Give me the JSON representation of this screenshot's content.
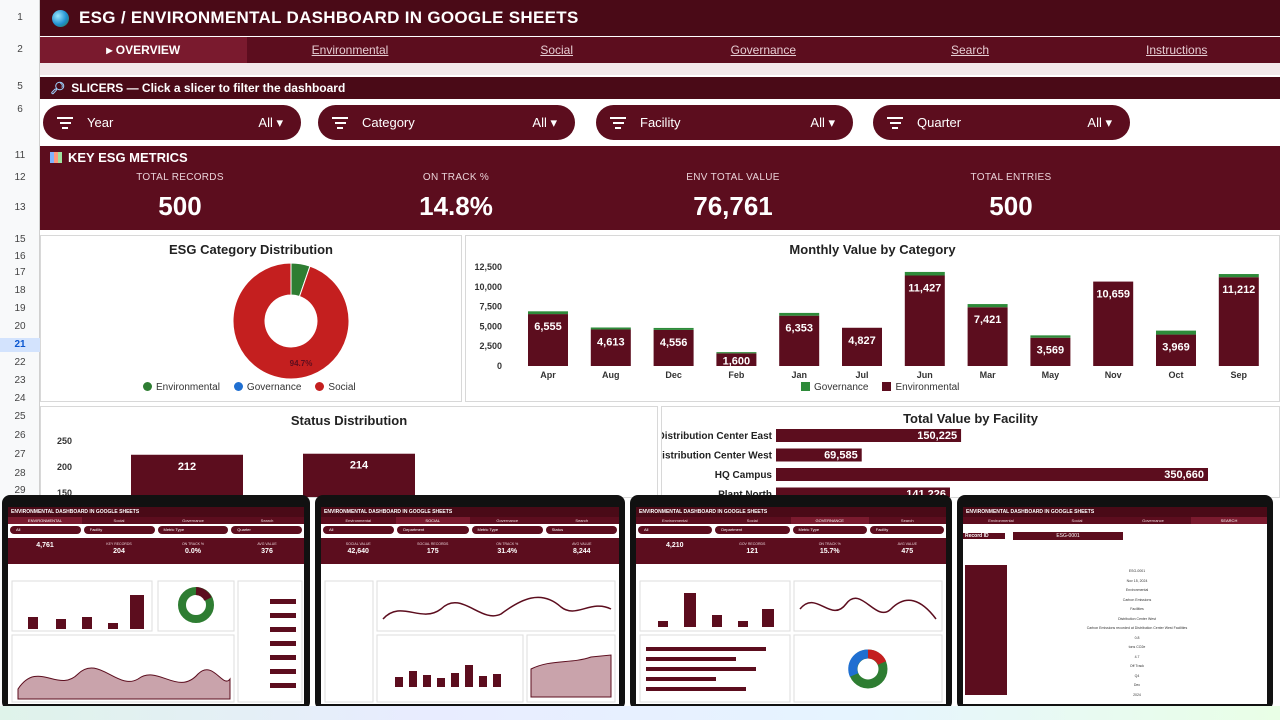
{
  "title": "ESG / ENVIRONMENTAL DASHBOARD IN GOOGLE SHEETS",
  "row_numbers": [
    "1",
    "2",
    "",
    "5",
    "6",
    "",
    "11",
    "12",
    "13",
    "15",
    "16",
    "17",
    "18",
    "19",
    "20",
    "21",
    "22",
    "23",
    "24",
    "25",
    "26",
    "27",
    "28",
    "29"
  ],
  "tabs": [
    {
      "label": "▸ OVERVIEW",
      "active": true
    },
    {
      "label": "Environmental"
    },
    {
      "label": "Social"
    },
    {
      "label": "Governance"
    },
    {
      "label": "Search"
    },
    {
      "label": "Instructions"
    }
  ],
  "slicers": {
    "header": "SLICERS — Click a slicer to filter the dashboard",
    "items": [
      {
        "label": "Year",
        "value": "All ▾"
      },
      {
        "label": "Category",
        "value": "All ▾"
      },
      {
        "label": "Facility",
        "value": "All ▾"
      },
      {
        "label": "Quarter",
        "value": "All ▾"
      }
    ]
  },
  "metrics": {
    "header": "KEY ESG METRICS",
    "items": [
      {
        "label": "TOTAL RECORDS",
        "value": "500"
      },
      {
        "label": "ON TRACK %",
        "value": "14.8%"
      },
      {
        "label": "ENV TOTAL VALUE",
        "value": "76,761"
      },
      {
        "label": "TOTAL ENTRIES",
        "value": "500"
      }
    ]
  },
  "colors": {
    "maroon": "#5c0d1e",
    "dark": "#4a0a17",
    "social": "#c41f1f",
    "environmental": "#2e7d32",
    "governance": "#1f6fd1",
    "gov_bar": "#2e8b3a"
  },
  "chart_data": [
    {
      "type": "pie",
      "title": "ESG Category Distribution",
      "categories": [
        "Environmental",
        "Governance",
        "Social"
      ],
      "values": [
        5.3,
        0,
        94.7
      ],
      "label": "94.7%",
      "legend": "bottom"
    },
    {
      "type": "bar",
      "title": "Monthly Value by Category",
      "categories": [
        "Apr",
        "Aug",
        "Dec",
        "Feb",
        "Jan",
        "Jul",
        "Jun",
        "Mar",
        "May",
        "Nov",
        "Oct",
        "Sep"
      ],
      "series": [
        {
          "name": "Environmental",
          "values": [
            6555,
            4613,
            4556,
            1600,
            6353,
            4827,
            11427,
            7421,
            3569,
            10659,
            3969,
            11212
          ]
        },
        {
          "name": "Governance",
          "values": [
            350,
            250,
            250,
            150,
            350,
            0,
            450,
            400,
            300,
            0,
            500,
            400
          ]
        }
      ],
      "yticks": [
        "0",
        "2,500",
        "5,000",
        "7,500",
        "10,000",
        "12,500"
      ],
      "ylim": [
        0,
        12500
      ],
      "legend": "bottom"
    },
    {
      "type": "bar",
      "title": "Status Distribution",
      "yticks": [
        "150",
        "200",
        "250"
      ],
      "values": [
        212,
        214
      ]
    },
    {
      "type": "bar",
      "title": "Total Value by Facility",
      "categories": [
        "Distribution Center East",
        "Distribution Center West",
        "HQ Campus",
        "Plant North"
      ],
      "values": [
        150225,
        69585,
        350660,
        141226
      ],
      "value_labels": [
        "150,225",
        "69,585",
        "350,660",
        "141,226"
      ]
    }
  ],
  "devices": [
    {
      "title": "ENVIRONMENTAL DASHBOARD IN GOOGLE SHEETS",
      "tabs": [
        "ENVIRONMENTAL",
        "Social",
        "Governance",
        "Search"
      ],
      "pills": [
        "All",
        "Facility",
        "Metric Type",
        "Quarter"
      ],
      "kpis": [
        [
          "",
          "4,761"
        ],
        [
          "KEY RECORDS",
          "204"
        ],
        [
          "ON TRACK %",
          "0.0%"
        ],
        [
          "AVG VALUE",
          "376"
        ]
      ]
    },
    {
      "title": "ENVIRONMENTAL DASHBOARD IN GOOGLE SHEETS",
      "tabs": [
        "Environmental",
        "SOCIAL",
        "Governance",
        "Search"
      ],
      "pills": [
        "All",
        "Department",
        "Metric Type",
        "Status"
      ],
      "kpis": [
        [
          "SOCIAL VALUE",
          "42,640"
        ],
        [
          "SOCIAL RECORDS",
          "175"
        ],
        [
          "ON TRACK %",
          "31.4%"
        ],
        [
          "AVG VALUE",
          "8,244"
        ]
      ]
    },
    {
      "title": "ENVIRONMENTAL DASHBOARD IN GOOGLE SHEETS",
      "tabs": [
        "Environmental",
        "Social",
        "GOVERNANCE",
        "Search"
      ],
      "pills": [
        "All",
        "Department",
        "Metric Type",
        "Facility"
      ],
      "kpis": [
        [
          "",
          "4,210"
        ],
        [
          "GOV RECORDS",
          "121"
        ],
        [
          "ON TRACK %",
          "15.7%"
        ],
        [
          "AVG VALUE",
          "475"
        ]
      ]
    },
    {
      "title": "ENVIRONMENTAL DASHBOARD IN GOOGLE SHEETS",
      "tabs": [
        "Environmental",
        "Social",
        "Governance",
        "SEARCH"
      ],
      "record_label": "Record ID",
      "record_value": "ESG-0001",
      "fields": [
        "ESG-0001",
        "Nov 15, 2024",
        "Environmental",
        "Carbon Emissions",
        "Facilities",
        "Distribution Center West",
        "Carbon Emissions recorded at Distribution Center West Facilities",
        "0.8",
        "tons CO2e",
        "4.7",
        "Off Track",
        "Q4",
        "Dec",
        "2024"
      ]
    }
  ]
}
